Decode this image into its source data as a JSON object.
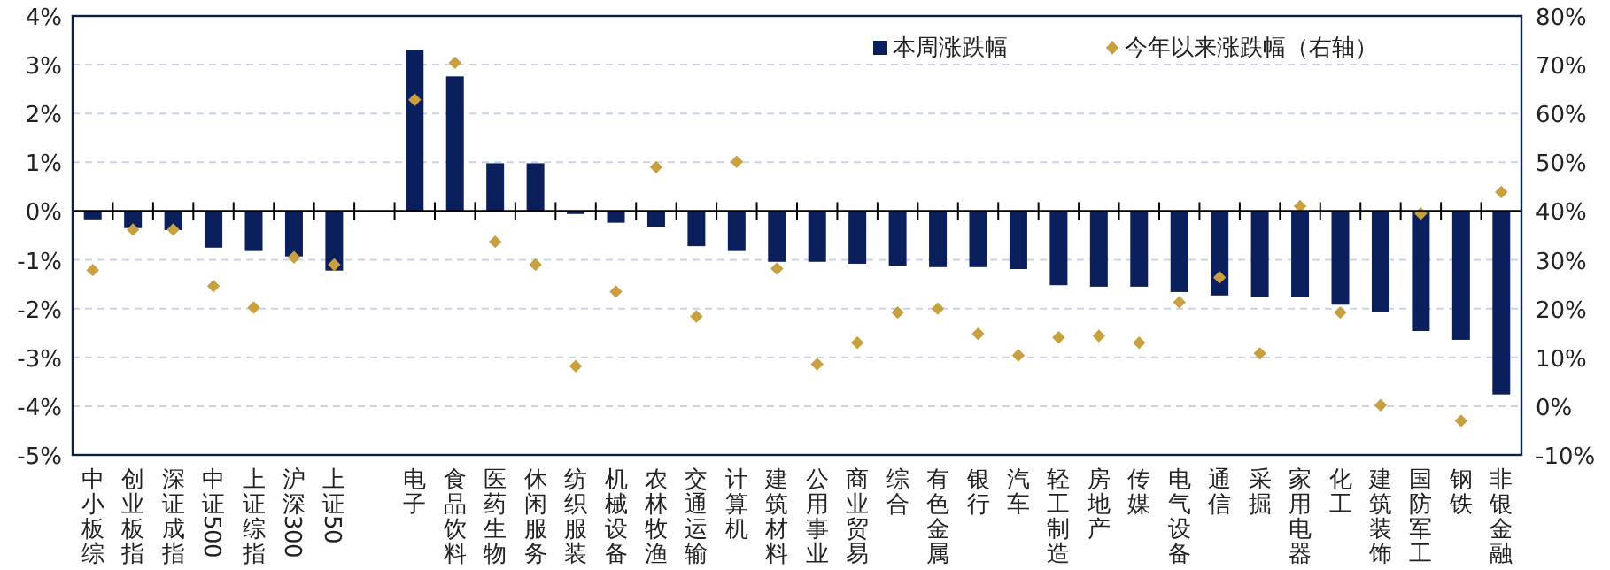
{
  "chart_data": {
    "type": "bar",
    "categories": [
      "中小板综",
      "创业板指",
      "深证成指",
      "中证500",
      "上证综指",
      "沪深300",
      "上证50",
      null,
      "电子",
      "食品饮料",
      "医药生物",
      "休闲服务",
      "纺织服装",
      "机械设备",
      "农林牧渔",
      "交通运输",
      "计算机",
      "建筑材料",
      "公用事业",
      "商业贸易",
      "综合",
      "有色金属",
      "银行",
      "汽车",
      "轻工制造",
      "房地产",
      "传媒",
      "电气设备",
      "通信",
      "采掘",
      "家用电器",
      "化工",
      "建筑装饰",
      "国防军工",
      "钢铁",
      "非银金融"
    ],
    "series": [
      {
        "name": "本周涨跌幅",
        "color": "#0a1f5c",
        "values": [
          -0.17,
          -0.35,
          -0.39,
          -0.75,
          -0.82,
          -0.93,
          -1.22,
          null,
          3.31,
          2.76,
          0.98,
          0.98,
          -0.06,
          -0.24,
          -0.32,
          -0.72,
          -0.82,
          -1.04,
          -1.04,
          -1.08,
          -1.12,
          -1.15,
          -1.15,
          -1.19,
          -1.52,
          -1.55,
          -1.55,
          -1.66,
          -1.73,
          -1.77,
          -1.77,
          -1.92,
          -2.06,
          -2.46,
          -2.64,
          -3.76
        ]
      },
      {
        "name": "今年以来涨跌幅（右轴）",
        "type": "scatter",
        "axis": "y2",
        "marker": "diamond",
        "color": "#c9a040",
        "values": [
          27.9,
          36.2,
          36.2,
          24.6,
          20.2,
          30.5,
          29.0,
          null,
          62.8,
          70.4,
          33.7,
          29.0,
          8.2,
          23.5,
          49.0,
          18.4,
          50.1,
          28.2,
          8.6,
          13.0,
          19.2,
          20.0,
          14.8,
          10.4,
          14.1,
          14.4,
          13.0,
          21.3,
          26.4,
          10.8,
          41.0,
          19.2,
          0.2,
          39.5,
          -3.0,
          43.9
        ]
      }
    ],
    "ylim": [
      -5,
      4
    ],
    "yticks": [
      {
        "value": -5,
        "label": "-5%"
      },
      {
        "value": -4,
        "label": "-4%"
      },
      {
        "value": -3,
        "label": "-3%"
      },
      {
        "value": -2,
        "label": "-2%"
      },
      {
        "value": -1,
        "label": "-1%"
      },
      {
        "value": 0,
        "label": "0%"
      },
      {
        "value": 1,
        "label": "1%"
      },
      {
        "value": 2,
        "label": "2%"
      },
      {
        "value": 3,
        "label": "3%"
      },
      {
        "value": 4,
        "label": "4%"
      }
    ],
    "y2lim": [
      -10,
      80
    ],
    "y2ticks": [
      {
        "value": -10,
        "label": "-10%"
      },
      {
        "value": 0,
        "label": "0%"
      },
      {
        "value": 10,
        "label": "10%"
      },
      {
        "value": 20,
        "label": "20%"
      },
      {
        "value": 30,
        "label": "30%"
      },
      {
        "value": 40,
        "label": "40%"
      },
      {
        "value": 50,
        "label": "50%"
      },
      {
        "value": 60,
        "label": "60%"
      },
      {
        "value": 70,
        "label": "70%"
      },
      {
        "value": 80,
        "label": "80%"
      }
    ],
    "grid": "y",
    "legend": "top"
  }
}
